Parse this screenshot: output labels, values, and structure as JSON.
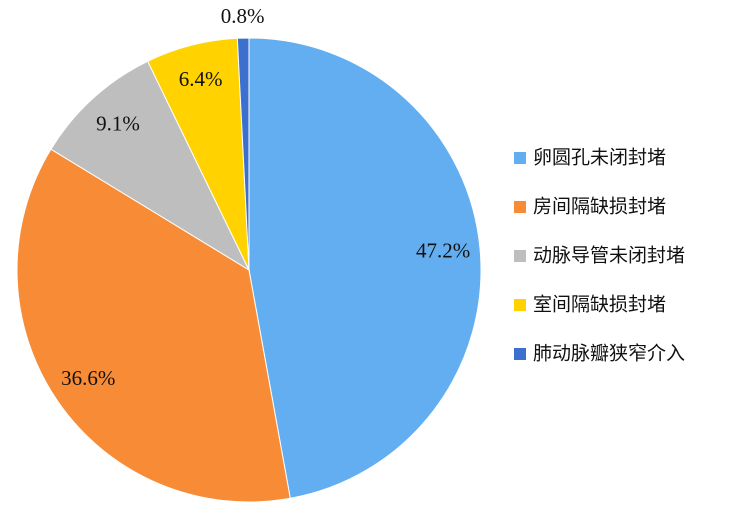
{
  "chart_data": {
    "type": "pie",
    "categories": [
      "卵圆孔未闭封堵",
      "房间隔缺损封堵",
      "动脉导管未闭封堵",
      "室间隔缺损封堵",
      "肺动脉瓣狭窄介入"
    ],
    "values": [
      47.2,
      36.6,
      9.1,
      6.4,
      0.8
    ],
    "value_labels": [
      "47.2%",
      "36.6%",
      "9.1%",
      "6.4%",
      "0.8%"
    ],
    "colors": [
      "#62aef1",
      "#f88b36",
      "#bebebe",
      "#ffd200",
      "#3b70cf"
    ],
    "legend": "right"
  }
}
